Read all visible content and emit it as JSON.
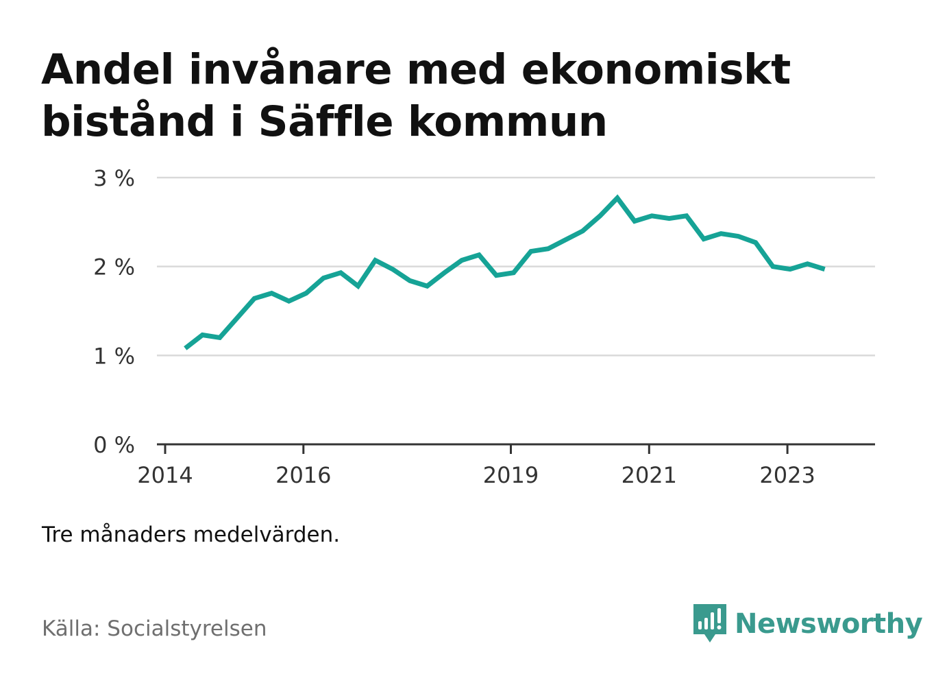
{
  "title": "Andel invånare med ekonomiskt bistånd i Säffle kommun",
  "note": "Tre månaders medelvärden.",
  "source": "Källa: Socialstyrelsen",
  "brand": {
    "name": "Newsworthy",
    "icon": "newsworthy-logo-icon",
    "color": "#3a9a8e"
  },
  "colors": {
    "line": "#16a396",
    "grid": "#d9d9d9",
    "axis": "#333333"
  },
  "chart_data": {
    "type": "line",
    "title": "Andel invånare med ekonomiskt bistånd i Säffle kommun",
    "xlabel": "",
    "ylabel": "",
    "x_ticks": [
      2014,
      2016,
      2019,
      2021,
      2023
    ],
    "y_ticks": [
      {
        "value": 0,
        "label": "0 %"
      },
      {
        "value": 1,
        "label": "1 %"
      },
      {
        "value": 2,
        "label": "2 %"
      },
      {
        "value": 3,
        "label": "3 %"
      }
    ],
    "xlim": [
      2014.0,
      2024.0
    ],
    "ylim": [
      0,
      3
    ],
    "grid": true,
    "legend": "none",
    "series": [
      {
        "x": [
          2014.29,
          2014.54,
          2014.79,
          2015.04,
          2015.29,
          2015.54,
          2015.79,
          2016.04,
          2016.29,
          2016.54,
          2016.79,
          2017.04,
          2017.29,
          2017.54,
          2017.79,
          2018.04,
          2018.29,
          2018.54,
          2018.79,
          2019.04,
          2019.29,
          2019.54,
          2019.79,
          2020.04,
          2020.29,
          2020.54,
          2020.79,
          2021.04,
          2021.29,
          2021.54,
          2021.79,
          2022.04,
          2022.29,
          2022.54,
          2022.79,
          2023.04,
          2023.29,
          2023.54
        ],
        "values": [
          1.08,
          1.23,
          1.2,
          1.42,
          1.64,
          1.7,
          1.61,
          1.7,
          1.87,
          1.93,
          1.78,
          2.07,
          1.97,
          1.84,
          1.78,
          1.93,
          2.07,
          2.13,
          1.9,
          1.93,
          2.17,
          2.2,
          2.3,
          2.4,
          2.57,
          2.77,
          2.51,
          2.57,
          2.54,
          2.57,
          2.31,
          2.37,
          2.34,
          2.27,
          2.0,
          1.97,
          2.03,
          1.97
        ]
      }
    ]
  }
}
